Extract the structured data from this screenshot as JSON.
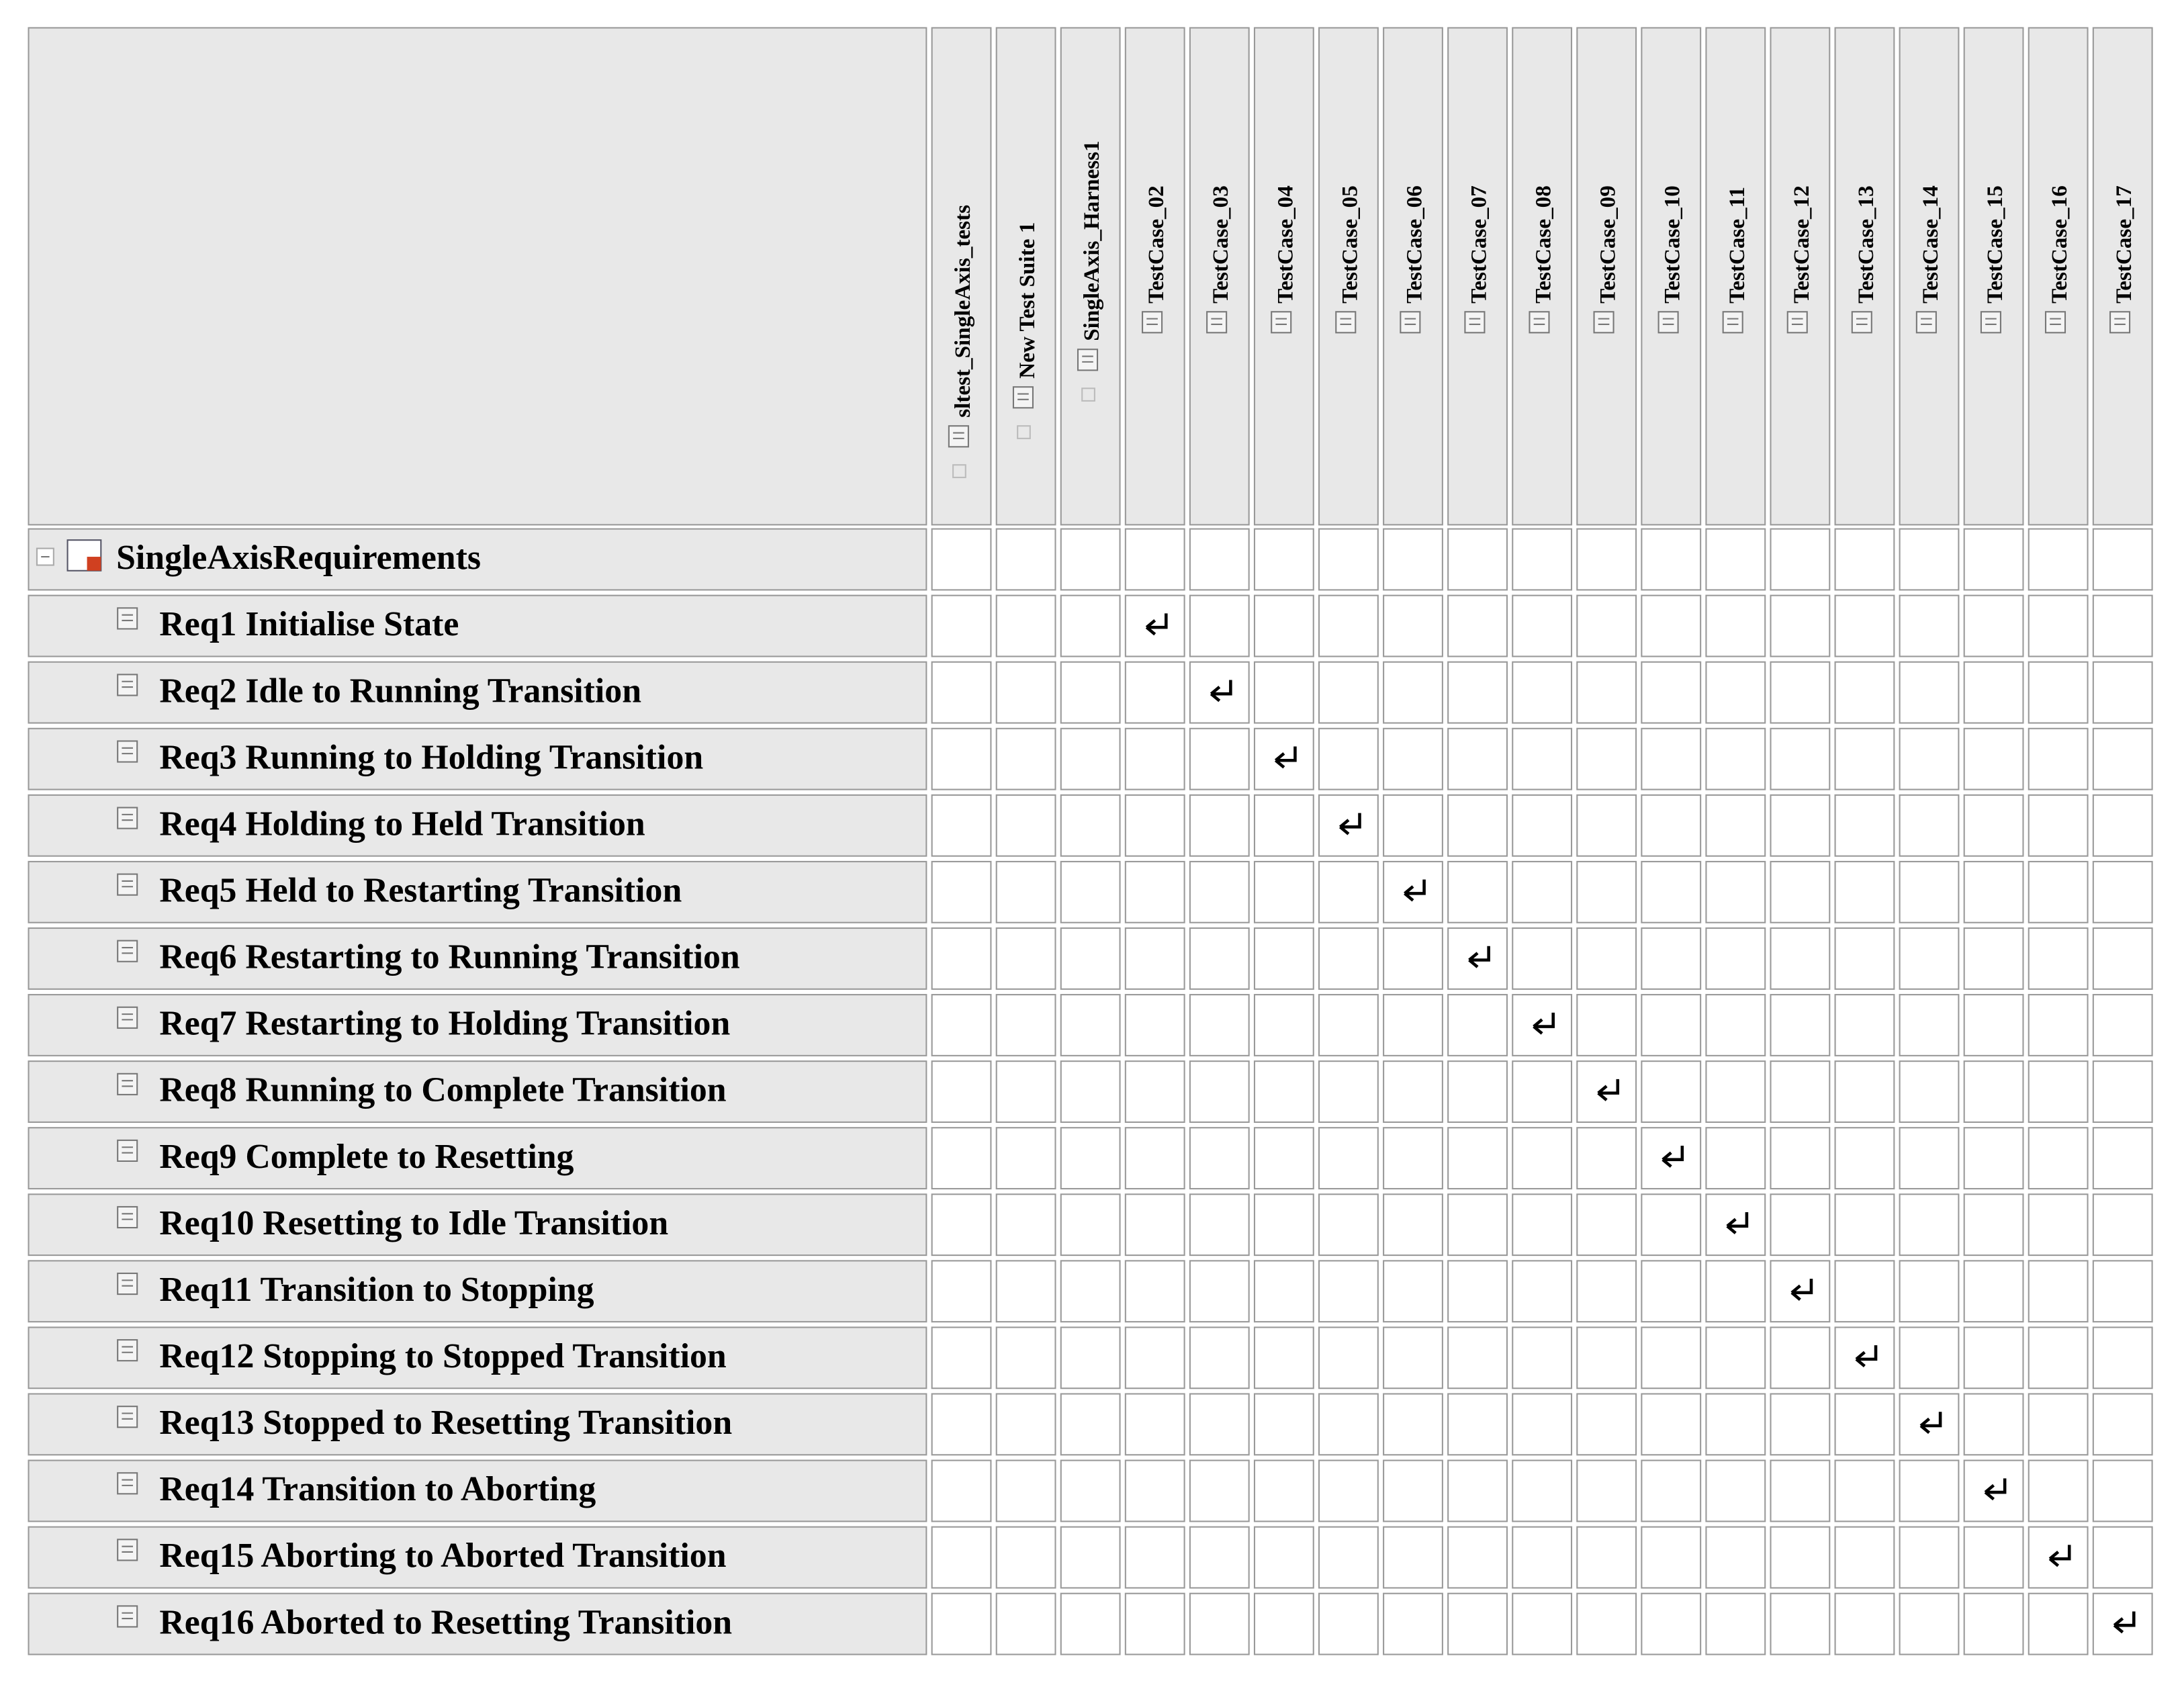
{
  "columns": [
    "sltest_SingleAxis_tests",
    "New Test Suite 1",
    "SingleAxis_Harness1",
    "TestCase_02",
    "TestCase_03",
    "TestCase_04",
    "TestCase_05",
    "TestCase_06",
    "TestCase_07",
    "TestCase_08",
    "TestCase_09",
    "TestCase_10",
    "TestCase_11",
    "TestCase_12",
    "TestCase_13",
    "TestCase_14",
    "TestCase_15",
    "TestCase_16",
    "TestCase_17"
  ],
  "root": "SingleAxisRequirements",
  "requirements": [
    {
      "label": "Req1 Initialise State",
      "link": 3
    },
    {
      "label": "Req2 Idle to Running Transition",
      "link": 4
    },
    {
      "label": "Req3 Running to Holding Transition",
      "link": 5
    },
    {
      "label": "Req4 Holding to Held Transition",
      "link": 6
    },
    {
      "label": "Req5 Held to Restarting Transition",
      "link": 7
    },
    {
      "label": "Req6 Restarting to Running Transition",
      "link": 8
    },
    {
      "label": "Req7 Restarting to Holding Transition",
      "link": 9
    },
    {
      "label": "Req8 Running to Complete Transition",
      "link": 10
    },
    {
      "label": "Req9 Complete to Resetting",
      "link": 11
    },
    {
      "label": "Req10 Resetting to Idle Transition",
      "link": 12
    },
    {
      "label": "Req11 Transition to Stopping",
      "link": 13
    },
    {
      "label": "Req12 Stopping to Stopped Transition",
      "link": 14
    },
    {
      "label": "Req13 Stopped to Resetting Transition",
      "link": 15
    },
    {
      "label": "Req14 Transition to Aborting",
      "link": 16
    },
    {
      "label": "Req15 Aborting to Aborted Transition",
      "link": 17
    },
    {
      "label": "Req16 Aborted to Resetting Transition",
      "link": 18
    }
  ]
}
